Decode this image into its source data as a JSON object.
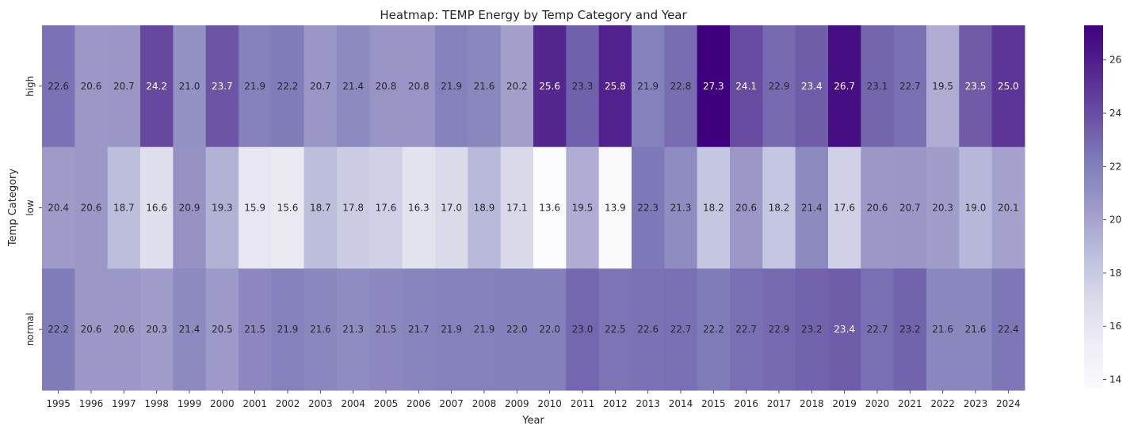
{
  "chart_data": {
    "type": "heatmap",
    "title": "Heatmap: TEMP Energy by Temp Category and Year",
    "xlabel": "Year",
    "ylabel": "Temp Category",
    "x": [
      "1995",
      "1996",
      "1997",
      "1998",
      "1999",
      "2000",
      "2001",
      "2002",
      "2003",
      "2004",
      "2005",
      "2006",
      "2007",
      "2008",
      "2009",
      "2010",
      "2011",
      "2012",
      "2013",
      "2014",
      "2015",
      "2016",
      "2017",
      "2018",
      "2019",
      "2020",
      "2021",
      "2022",
      "2023",
      "2024"
    ],
    "y": [
      "high",
      "low",
      "normal"
    ],
    "values": [
      [
        22.6,
        20.6,
        20.7,
        24.2,
        21.0,
        23.7,
        21.9,
        22.2,
        20.7,
        21.4,
        20.8,
        20.8,
        21.9,
        21.6,
        20.2,
        25.6,
        23.3,
        25.8,
        21.9,
        22.8,
        27.3,
        24.1,
        22.9,
        23.4,
        26.7,
        23.1,
        22.7,
        19.5,
        23.5,
        25.0
      ],
      [
        20.4,
        20.6,
        18.7,
        16.6,
        20.9,
        19.3,
        15.9,
        15.6,
        18.7,
        17.8,
        17.6,
        16.3,
        17.0,
        18.9,
        17.1,
        13.6,
        19.5,
        13.9,
        22.3,
        21.3,
        18.2,
        20.6,
        18.2,
        21.4,
        17.6,
        20.6,
        20.7,
        20.3,
        19.0,
        20.1
      ],
      [
        22.2,
        20.6,
        20.6,
        20.3,
        21.4,
        20.5,
        21.5,
        21.9,
        21.6,
        21.3,
        21.5,
        21.7,
        21.9,
        21.9,
        22.0,
        22.0,
        23.0,
        22.5,
        22.6,
        22.7,
        22.2,
        22.7,
        22.9,
        23.2,
        23.4,
        22.7,
        23.2,
        21.6,
        21.6,
        22.4
      ]
    ],
    "vmin": 13.6,
    "vmax": 27.3,
    "colormap": "Purples",
    "colorbar_ticks": [
      "14",
      "16",
      "18",
      "20",
      "22",
      "24",
      "26"
    ],
    "annotations": true
  }
}
